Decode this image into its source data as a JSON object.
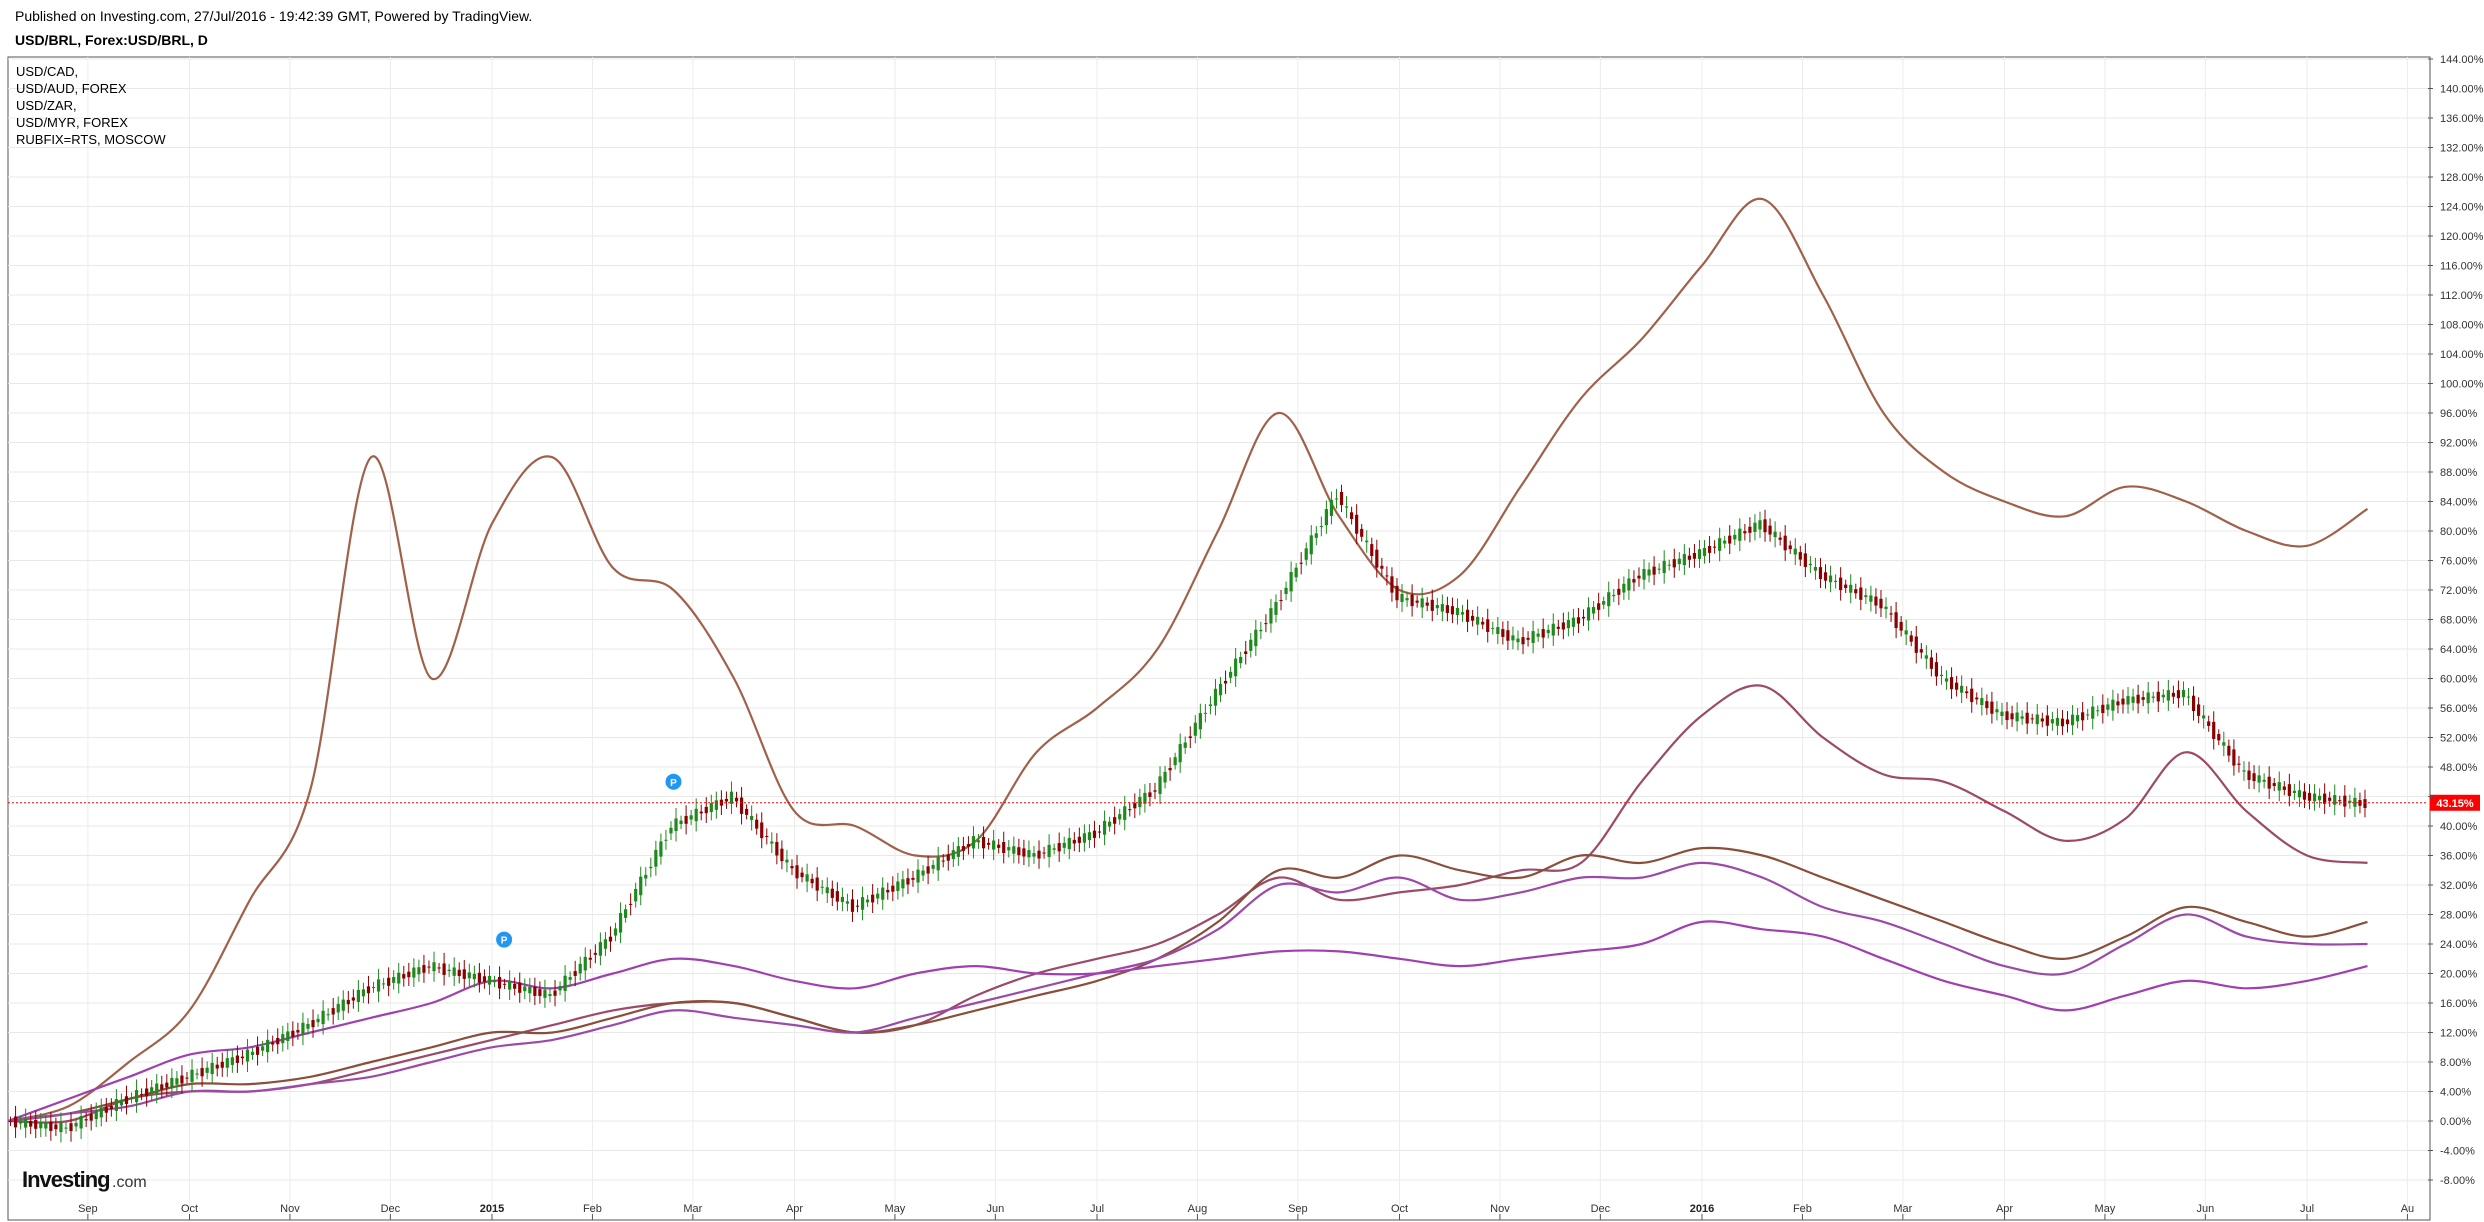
{
  "header": {
    "published": "Published on Investing.com, 27/Jul/2016 - 19:42:39 GMT, Powered by TradingView.",
    "symbol": "USD/BRL, Forex:USD/BRL, D"
  },
  "legend": [
    "USD/CAD,",
    "USD/AUD, FOREX",
    "USD/ZAR,",
    "USD/MYR, FOREX",
    "RUBFIX=RTS, MOSCOW"
  ],
  "logo": {
    "brand": "Investing",
    "suffix": ".com"
  },
  "current_value_label": "43.15%",
  "colors": {
    "brown": "#a0614a",
    "dark_brown": "#8a4f3a",
    "rose": "#9b4a6a",
    "purple": "#9b4aa8",
    "violet": "#a040b0",
    "up_candle": "#1e8a1e",
    "down_candle": "#8b0000",
    "current_line": "#ff0000",
    "marker": "#2196f3"
  },
  "markers": [
    {
      "label": "P",
      "time": 2015.01
    },
    {
      "label": "P",
      "time": 2015.15
    }
  ],
  "chart_data": {
    "type": "line",
    "yaxis_unit": "%",
    "ylim": [
      -10,
      145
    ],
    "y_ticks": [
      -8,
      -4,
      0,
      4,
      8,
      12,
      16,
      20,
      24,
      28,
      32,
      36,
      40,
      44,
      48,
      52,
      56,
      60,
      64,
      68,
      72,
      76,
      80,
      84,
      88,
      92,
      96,
      100,
      104,
      108,
      112,
      116,
      120,
      124,
      128,
      132,
      136,
      140,
      144
    ],
    "y_tick_labels": [
      "-8.00%",
      "-4.00%",
      "0.00%",
      "4.00%",
      "8.00%",
      "12.00%",
      "16.00%",
      "20.00%",
      "24.00%",
      "28.00%",
      "32.00%",
      "36.00%",
      "40.00%",
      "",
      "48.00%",
      "52.00%",
      "56.00%",
      "60.00%",
      "64.00%",
      "68.00%",
      "72.00%",
      "76.00%",
      "80.00%",
      "84.00%",
      "88.00%",
      "92.00%",
      "96.00%",
      "100.00%",
      "104.00%",
      "108.00%",
      "112.00%",
      "116.00%",
      "120.00%",
      "124.00%",
      "128.00%",
      "132.00%",
      "136.00%",
      "140.00%",
      "144.00%"
    ],
    "xlim": [
      2014.6,
      2016.6
    ],
    "x_ticks": [
      {
        "label": "Sep",
        "t": 2014.666,
        "bold": false
      },
      {
        "label": "Oct",
        "t": 2014.75,
        "bold": false
      },
      {
        "label": "Nov",
        "t": 2014.833,
        "bold": false
      },
      {
        "label": "Dec",
        "t": 2014.916,
        "bold": false
      },
      {
        "label": "2015",
        "t": 2015.0,
        "bold": true
      },
      {
        "label": "Feb",
        "t": 2015.083,
        "bold": false
      },
      {
        "label": "Mar",
        "t": 2015.166,
        "bold": false
      },
      {
        "label": "Apr",
        "t": 2015.25,
        "bold": false
      },
      {
        "label": "May",
        "t": 2015.333,
        "bold": false
      },
      {
        "label": "Jun",
        "t": 2015.416,
        "bold": false
      },
      {
        "label": "Jul",
        "t": 2015.5,
        "bold": false
      },
      {
        "label": "Aug",
        "t": 2015.583,
        "bold": false
      },
      {
        "label": "Sep",
        "t": 2015.666,
        "bold": false
      },
      {
        "label": "Oct",
        "t": 2015.75,
        "bold": false
      },
      {
        "label": "Nov",
        "t": 2015.833,
        "bold": false
      },
      {
        "label": "Dec",
        "t": 2015.916,
        "bold": false
      },
      {
        "label": "2016",
        "t": 2016.0,
        "bold": true
      },
      {
        "label": "Feb",
        "t": 2016.083,
        "bold": false
      },
      {
        "label": "Mar",
        "t": 2016.166,
        "bold": false
      },
      {
        "label": "Apr",
        "t": 2016.25,
        "bold": false
      },
      {
        "label": "May",
        "t": 2016.333,
        "bold": false
      },
      {
        "label": "Jun",
        "t": 2016.416,
        "bold": false
      },
      {
        "label": "Jul",
        "t": 2016.5,
        "bold": false
      },
      {
        "label": "Au",
        "t": 2016.583,
        "bold": false
      }
    ],
    "current_value": 43.15,
    "x": [
      2014.6,
      2014.65,
      2014.7,
      2014.75,
      2014.8,
      2014.85,
      2014.9,
      2014.95,
      2015.0,
      2015.05,
      2015.1,
      2015.15,
      2015.2,
      2015.25,
      2015.3,
      2015.35,
      2015.4,
      2015.45,
      2015.5,
      2015.55,
      2015.6,
      2015.65,
      2015.7,
      2015.75,
      2015.8,
      2015.85,
      2015.9,
      2015.95,
      2016.0,
      2016.05,
      2016.1,
      2016.15,
      2016.2,
      2016.25,
      2016.3,
      2016.35,
      2016.4,
      2016.45,
      2016.5,
      2016.55
    ],
    "series": [
      {
        "name": "USD/BRL",
        "type": "candlestick",
        "values": [
          0,
          -1,
          3,
          6,
          9,
          13,
          18,
          21,
          19,
          17,
          25,
          40,
          44,
          34,
          29,
          33,
          38,
          36,
          39,
          45,
          58,
          70,
          85,
          71,
          69,
          65,
          68,
          74,
          77,
          81,
          74,
          70,
          60,
          55,
          54,
          57,
          58,
          47,
          44,
          43
        ]
      },
      {
        "name": "RUBFIX=RTS, MOSCOW",
        "color_key": "brown",
        "values": [
          0,
          2,
          8,
          15,
          30,
          45,
          90,
          60,
          81,
          90,
          75,
          72,
          60,
          42,
          40,
          36,
          38,
          50,
          56,
          64,
          80,
          96,
          82,
          72,
          74,
          86,
          98,
          106,
          116,
          125,
          112,
          96,
          88,
          84,
          82,
          86,
          84,
          80,
          78,
          83
        ]
      },
      {
        "name": "USD/MYR, FOREX",
        "color_key": "rose",
        "values": [
          0,
          0,
          3,
          4,
          4,
          5,
          7,
          9,
          11,
          13,
          15,
          16,
          16,
          14,
          12,
          13,
          17,
          20,
          22,
          24,
          28,
          33,
          30,
          31,
          32,
          34,
          35,
          46,
          55,
          59,
          52,
          47,
          46,
          42,
          38,
          41,
          50,
          42,
          36,
          35
        ]
      },
      {
        "name": "USD/ZAR,",
        "color_key": "dark_brown",
        "values": [
          0,
          1,
          3,
          5,
          5,
          6,
          8,
          10,
          12,
          12,
          14,
          16,
          16,
          14,
          12,
          13,
          15,
          17,
          19,
          22,
          27,
          34,
          33,
          36,
          34,
          33,
          36,
          35,
          37,
          36,
          33,
          30,
          27,
          24,
          22,
          25,
          29,
          27,
          25,
          27
        ]
      },
      {
        "name": "USD/CAD,",
        "color_key": "purple",
        "values": [
          0,
          1,
          2,
          4,
          4,
          5,
          6,
          8,
          10,
          11,
          13,
          15,
          14,
          13,
          12,
          14,
          16,
          18,
          20,
          22,
          26,
          32,
          31,
          33,
          30,
          31,
          33,
          33,
          35,
          33,
          29,
          27,
          24,
          21,
          20,
          24,
          28,
          25,
          24,
          24
        ]
      },
      {
        "name": "USD/AUD, FOREX",
        "color_key": "violet",
        "values": [
          0,
          3,
          6,
          9,
          10,
          12,
          14,
          16,
          19,
          18,
          20,
          22,
          21,
          19,
          18,
          20,
          21,
          20,
          20,
          21,
          22,
          23,
          23,
          22,
          21,
          22,
          23,
          24,
          27,
          26,
          25,
          22,
          19,
          17,
          15,
          17,
          19,
          18,
          19,
          21
        ]
      }
    ]
  }
}
